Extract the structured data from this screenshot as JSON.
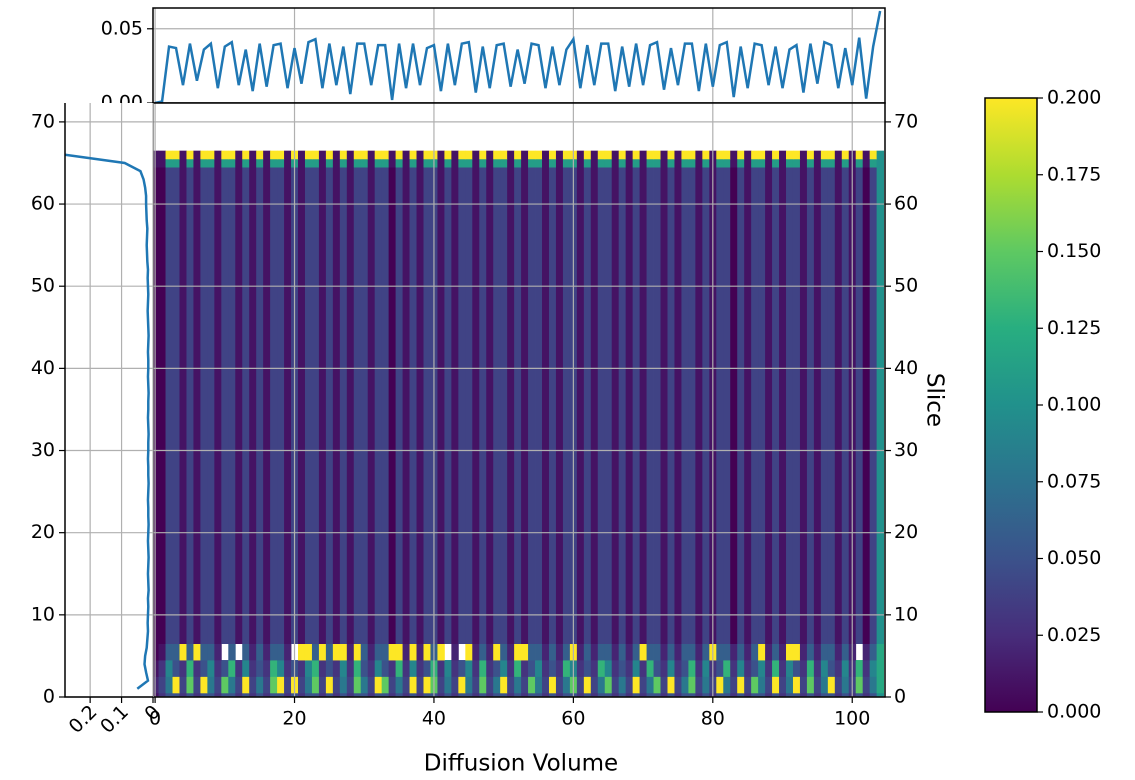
{
  "chart_data": [
    {
      "type": "heatmap",
      "xlabel": "Diffusion Volume",
      "ylabel": "Slice",
      "colormap": "viridis",
      "grid": true,
      "xlim": [
        -0.3,
        104.7
      ],
      "ylim": [
        0,
        72.3
      ],
      "xticks": [
        0,
        20,
        40,
        60,
        80,
        100
      ],
      "yticks": [
        0,
        10,
        20,
        30,
        40,
        50,
        60,
        70
      ],
      "x": [
        0,
        1,
        2,
        3,
        4,
        5,
        6,
        7,
        8,
        9,
        10,
        11,
        12,
        13,
        14,
        15,
        16,
        17,
        18,
        19,
        20,
        21,
        22,
        23,
        24,
        25,
        26,
        27,
        28,
        29,
        30,
        31,
        32,
        33,
        34,
        35,
        36,
        37,
        38,
        39,
        40,
        41,
        42,
        43,
        44,
        45,
        46,
        47,
        48,
        49,
        50,
        51,
        52,
        53,
        54,
        55,
        56,
        57,
        58,
        59,
        60,
        61,
        62,
        63,
        64,
        65,
        66,
        67,
        68,
        69,
        70,
        71,
        72,
        73,
        74,
        75,
        76,
        77,
        78,
        79,
        80,
        81,
        82,
        83,
        84,
        85,
        86,
        87,
        88,
        89,
        90,
        91,
        92,
        93,
        94,
        95,
        96,
        97,
        98,
        99,
        100,
        101,
        102,
        103,
        104
      ],
      "y_edges": [
        -0.5,
        0.5,
        2.5,
        4.5,
        6.5,
        64.5,
        65.5,
        66.5
      ],
      "z": [
        [
          0.01,
          0.03,
          0.05,
          0.05,
          0.03,
          0.05,
          0.03,
          0.05,
          0.05,
          0.03,
          0.05,
          0.05,
          0.03,
          0.05,
          0.03,
          0.05,
          0.03,
          0.05,
          0.05,
          0.03,
          0.05,
          0.03,
          0.05,
          0.05,
          0.03,
          0.05,
          0.03,
          0.05,
          0.03,
          0.05,
          0.05,
          0.03,
          0.05,
          0.05,
          0.03,
          0.05,
          0.03,
          0.05,
          0.03,
          0.05,
          0.05,
          0.03,
          0.05,
          0.03,
          0.05,
          0.05,
          0.03,
          0.05,
          0.03,
          0.05,
          0.05,
          0.03,
          0.05,
          0.03,
          0.05,
          0.05,
          0.03,
          0.05,
          0.03,
          0.05,
          0.05,
          0.03,
          0.05,
          0.03,
          0.05,
          0.05,
          0.03,
          0.05,
          0.03,
          0.05,
          0.03,
          0.05,
          0.05,
          0.03,
          0.05,
          0.03,
          0.05,
          0.05,
          0.03,
          0.05,
          0.03,
          0.05,
          0.05,
          0.03,
          0.05,
          0.03,
          0.05,
          0.05,
          0.03,
          0.05,
          0.03,
          0.05,
          0.05,
          0.03,
          0.05,
          0.03,
          0.05,
          0.05,
          0.03,
          0.05,
          0.03,
          0.05,
          0.03,
          0.05,
          0.1
        ],
        [
          0.02,
          0.04,
          0.08,
          0.22,
          0.04,
          0.15,
          0.04,
          0.22,
          0.08,
          0.04,
          0.15,
          0.08,
          0.04,
          0.22,
          0.04,
          0.08,
          0.04,
          0.15,
          0.22,
          0.04,
          0.22,
          0.04,
          0.08,
          0.15,
          0.04,
          0.22,
          0.04,
          0.08,
          0.04,
          0.15,
          0.08,
          0.04,
          0.22,
          0.15,
          0.04,
          0.08,
          0.04,
          0.22,
          0.04,
          0.22,
          0.15,
          0.04,
          0.08,
          0.04,
          0.22,
          0.08,
          0.04,
          0.15,
          0.04,
          0.08,
          0.22,
          0.04,
          0.08,
          0.04,
          0.15,
          0.08,
          0.04,
          0.22,
          0.04,
          0.08,
          0.15,
          0.04,
          0.22,
          0.04,
          0.08,
          0.15,
          0.04,
          0.08,
          0.04,
          0.22,
          0.04,
          0.08,
          0.15,
          0.04,
          0.22,
          0.04,
          0.08,
          0.15,
          0.04,
          0.08,
          0.04,
          0.22,
          0.08,
          0.04,
          0.22,
          0.04,
          0.15,
          0.08,
          0.04,
          0.22,
          0.04,
          0.08,
          0.22,
          0.04,
          0.15,
          0.04,
          0.08,
          0.22,
          0.04,
          0.08,
          0.04,
          0.15,
          0.04,
          0.08,
          0.12
        ],
        [
          0.01,
          0.03,
          0.09,
          0.05,
          0.03,
          0.13,
          0.03,
          0.05,
          0.09,
          0.03,
          0.05,
          0.13,
          0.03,
          0.09,
          0.03,
          0.05,
          0.03,
          0.13,
          0.09,
          0.03,
          0.05,
          0.03,
          0.09,
          0.13,
          0.03,
          0.05,
          0.03,
          0.09,
          0.03,
          0.13,
          0.05,
          0.03,
          0.09,
          0.05,
          0.03,
          0.13,
          0.03,
          0.09,
          0.03,
          0.05,
          0.13,
          0.03,
          0.09,
          0.03,
          0.05,
          0.09,
          0.03,
          0.13,
          0.03,
          0.05,
          0.09,
          0.03,
          0.13,
          0.03,
          0.05,
          0.09,
          0.03,
          0.05,
          0.03,
          0.13,
          0.09,
          0.03,
          0.05,
          0.03,
          0.13,
          0.09,
          0.03,
          0.05,
          0.03,
          0.09,
          0.03,
          0.13,
          0.05,
          0.03,
          0.09,
          0.03,
          0.05,
          0.13,
          0.03,
          0.09,
          0.03,
          0.05,
          0.13,
          0.03,
          0.09,
          0.03,
          0.05,
          0.09,
          0.03,
          0.13,
          0.03,
          0.09,
          0.05,
          0.03,
          0.13,
          0.03,
          0.09,
          0.05,
          0.03,
          0.09,
          0.03,
          0.13,
          0.03,
          0.09,
          0.12
        ],
        [
          0.0,
          0.01,
          0.06,
          0.06,
          0.22,
          0.06,
          0.22,
          0.06,
          0.06,
          0.02,
          null,
          0.06,
          null,
          0.06,
          0.02,
          0.06,
          0.02,
          0.06,
          0.06,
          0.02,
          null,
          0.22,
          0.22,
          0.06,
          0.22,
          0.06,
          0.22,
          0.22,
          0.02,
          0.22,
          0.06,
          0.02,
          0.06,
          0.06,
          0.22,
          0.22,
          0.02,
          0.22,
          0.02,
          0.22,
          0.06,
          0.22,
          null,
          0.02,
          null,
          0.22,
          0.02,
          0.06,
          0.02,
          0.22,
          0.06,
          0.02,
          0.22,
          0.22,
          0.06,
          0.06,
          0.02,
          0.06,
          0.02,
          0.06,
          0.22,
          0.02,
          0.06,
          0.02,
          0.06,
          0.06,
          0.02,
          0.06,
          0.02,
          0.06,
          0.22,
          0.06,
          0.06,
          0.02,
          0.06,
          0.02,
          0.06,
          0.06,
          0.02,
          0.06,
          0.22,
          0.06,
          0.06,
          0.02,
          0.06,
          0.02,
          0.06,
          0.22,
          0.02,
          0.06,
          0.02,
          0.22,
          0.22,
          0.02,
          0.06,
          0.02,
          0.06,
          0.06,
          0.02,
          0.06,
          0.02,
          null,
          0.02,
          0.06,
          0.12
        ],
        [
          0.0,
          0.0,
          0.04,
          0.04,
          0.01,
          0.04,
          0.01,
          0.04,
          0.04,
          0.01,
          0.04,
          0.04,
          0.01,
          0.04,
          0.01,
          0.04,
          0.01,
          0.04,
          0.04,
          0.01,
          0.04,
          0.01,
          0.04,
          0.04,
          0.01,
          0.04,
          0.01,
          0.04,
          0.01,
          0.04,
          0.04,
          0.01,
          0.04,
          0.04,
          0.0,
          0.04,
          0.01,
          0.04,
          0.01,
          0.04,
          0.04,
          0.01,
          0.04,
          0.01,
          0.04,
          0.04,
          0.01,
          0.04,
          0.01,
          0.04,
          0.04,
          0.01,
          0.04,
          0.01,
          0.04,
          0.04,
          0.01,
          0.04,
          0.01,
          0.04,
          0.04,
          0.01,
          0.04,
          0.01,
          0.04,
          0.04,
          0.01,
          0.04,
          0.01,
          0.04,
          0.01,
          0.04,
          0.04,
          0.01,
          0.04,
          0.01,
          0.04,
          0.04,
          0.01,
          0.04,
          0.01,
          0.04,
          0.04,
          0.0,
          0.04,
          0.01,
          0.04,
          0.04,
          0.01,
          0.04,
          0.01,
          0.04,
          0.04,
          0.01,
          0.04,
          0.01,
          0.04,
          0.04,
          0.01,
          0.04,
          0.01,
          0.04,
          0.0,
          0.04,
          0.1
        ],
        [
          0.01,
          0.01,
          0.11,
          0.11,
          0.01,
          0.11,
          0.01,
          0.11,
          0.11,
          0.01,
          0.11,
          0.11,
          0.01,
          0.11,
          0.01,
          0.11,
          0.01,
          0.11,
          0.11,
          0.01,
          0.11,
          0.01,
          0.11,
          0.11,
          0.01,
          0.11,
          0.01,
          0.11,
          0.01,
          0.11,
          0.11,
          0.01,
          0.11,
          0.11,
          0.01,
          0.11,
          0.01,
          0.11,
          0.01,
          0.11,
          0.11,
          0.01,
          0.11,
          0.01,
          0.11,
          0.11,
          0.01,
          0.11,
          0.01,
          0.11,
          0.11,
          0.01,
          0.11,
          0.01,
          0.11,
          0.11,
          0.01,
          0.11,
          0.01,
          0.11,
          0.11,
          0.01,
          0.11,
          0.01,
          0.11,
          0.11,
          0.01,
          0.11,
          0.01,
          0.11,
          0.01,
          0.11,
          0.11,
          0.01,
          0.11,
          0.01,
          0.11,
          0.11,
          0.01,
          0.11,
          0.01,
          0.11,
          0.11,
          0.01,
          0.11,
          0.01,
          0.11,
          0.11,
          0.01,
          0.11,
          0.01,
          0.11,
          0.11,
          0.01,
          0.11,
          0.01,
          0.11,
          0.11,
          0.01,
          0.11,
          0.01,
          0.11,
          0.01,
          0.11,
          0.1
        ],
        [
          0.01,
          0.01,
          0.22,
          0.22,
          0.01,
          0.22,
          0.01,
          0.22,
          0.22,
          0.01,
          0.22,
          0.22,
          0.01,
          0.22,
          0.01,
          0.22,
          0.01,
          0.22,
          0.22,
          0.01,
          0.22,
          0.01,
          0.22,
          0.22,
          0.01,
          0.22,
          0.01,
          0.22,
          0.01,
          0.22,
          0.22,
          0.01,
          0.22,
          0.22,
          0.01,
          0.22,
          0.01,
          0.22,
          0.01,
          0.22,
          0.22,
          0.01,
          0.22,
          0.01,
          0.22,
          0.22,
          0.01,
          0.22,
          0.01,
          0.22,
          0.22,
          0.01,
          0.22,
          0.01,
          0.22,
          0.22,
          0.01,
          0.22,
          0.01,
          0.22,
          0.22,
          0.01,
          0.22,
          0.01,
          0.22,
          0.22,
          0.01,
          0.22,
          0.01,
          0.22,
          0.01,
          0.22,
          0.22,
          0.01,
          0.22,
          0.01,
          0.22,
          0.22,
          0.01,
          0.22,
          0.01,
          0.22,
          0.22,
          0.01,
          0.22,
          0.01,
          0.22,
          0.22,
          0.01,
          0.22,
          0.01,
          0.22,
          0.22,
          0.01,
          0.22,
          0.01,
          0.22,
          0.22,
          0.01,
          0.22,
          0.01,
          0.22,
          0.01,
          0.22,
          0.1
        ]
      ],
      "colorbar": {
        "lim": [
          0,
          0.2
        ],
        "ticks": [
          {
            "value": 0,
            "label": "0.000"
          },
          {
            "value": 0.025,
            "label": "0.025"
          },
          {
            "value": 0.05,
            "label": "0.050"
          },
          {
            "value": 0.075,
            "label": "0.075"
          },
          {
            "value": 0.1,
            "label": "0.100"
          },
          {
            "value": 0.125,
            "label": "0.125"
          },
          {
            "value": 0.15,
            "label": "0.150"
          },
          {
            "value": 0.175,
            "label": "0.175"
          },
          {
            "value": 0.2,
            "label": "0.200"
          }
        ]
      }
    },
    {
      "type": "line",
      "color": "#1f77b4",
      "grid": true,
      "ylim": [
        0,
        0.064
      ],
      "yticks": [
        {
          "value": 0,
          "label": "0.00"
        },
        {
          "value": 0.05,
          "label": "0.05"
        }
      ],
      "values": [
        0.0,
        0.001,
        0.038,
        0.037,
        0.012,
        0.04,
        0.015,
        0.036,
        0.04,
        0.01,
        0.038,
        0.041,
        0.012,
        0.036,
        0.008,
        0.04,
        0.011,
        0.039,
        0.04,
        0.01,
        0.037,
        0.013,
        0.041,
        0.043,
        0.01,
        0.04,
        0.012,
        0.038,
        0.006,
        0.04,
        0.04,
        0.012,
        0.039,
        0.039,
        0.002,
        0.04,
        0.01,
        0.04,
        0.012,
        0.037,
        0.039,
        0.008,
        0.04,
        0.012,
        0.04,
        0.041,
        0.007,
        0.038,
        0.01,
        0.039,
        0.04,
        0.011,
        0.036,
        0.013,
        0.04,
        0.039,
        0.01,
        0.038,
        0.012,
        0.036,
        0.043,
        0.01,
        0.039,
        0.012,
        0.04,
        0.04,
        0.008,
        0.038,
        0.011,
        0.04,
        0.012,
        0.039,
        0.041,
        0.009,
        0.037,
        0.012,
        0.04,
        0.04,
        0.008,
        0.04,
        0.011,
        0.039,
        0.041,
        0.004,
        0.038,
        0.01,
        0.04,
        0.039,
        0.012,
        0.038,
        0.01,
        0.036,
        0.039,
        0.007,
        0.04,
        0.013,
        0.041,
        0.039,
        0.01,
        0.037,
        0.012,
        0.044,
        0.003,
        0.038,
        0.062
      ]
    },
    {
      "type": "line",
      "orientation": "horizontal",
      "color": "#1f77b4",
      "grid": true,
      "xlim": [
        0.28,
        0
      ],
      "xticks": [
        0.2,
        0.1,
        0
      ],
      "y": [
        1,
        2,
        3,
        4,
        5,
        6,
        7,
        8,
        9,
        10,
        11,
        12,
        13,
        14,
        15,
        16,
        17,
        18,
        19,
        20,
        21,
        22,
        23,
        24,
        25,
        26,
        27,
        28,
        29,
        30,
        31,
        32,
        33,
        34,
        35,
        36,
        37,
        38,
        39,
        40,
        41,
        42,
        43,
        44,
        45,
        46,
        47,
        48,
        49,
        50,
        51,
        52,
        53,
        54,
        55,
        56,
        57,
        58,
        59,
        60,
        61,
        62,
        63,
        64,
        65,
        66
      ],
      "values": [
        0.05,
        0.016,
        0.022,
        0.027,
        0.025,
        0.02,
        0.018,
        0.016,
        0.017,
        0.016,
        0.015,
        0.016,
        0.014,
        0.015,
        0.016,
        0.015,
        0.014,
        0.015,
        0.016,
        0.015,
        0.014,
        0.015,
        0.015,
        0.016,
        0.015,
        0.014,
        0.015,
        0.015,
        0.016,
        0.015,
        0.015,
        0.014,
        0.015,
        0.016,
        0.015,
        0.015,
        0.014,
        0.015,
        0.016,
        0.015,
        0.015,
        0.016,
        0.015,
        0.014,
        0.015,
        0.016,
        0.017,
        0.016,
        0.015,
        0.016,
        0.017,
        0.016,
        0.018,
        0.019,
        0.02,
        0.019,
        0.018,
        0.02,
        0.021,
        0.022,
        0.022,
        0.025,
        0.03,
        0.04,
        0.09,
        0.28
      ]
    }
  ]
}
